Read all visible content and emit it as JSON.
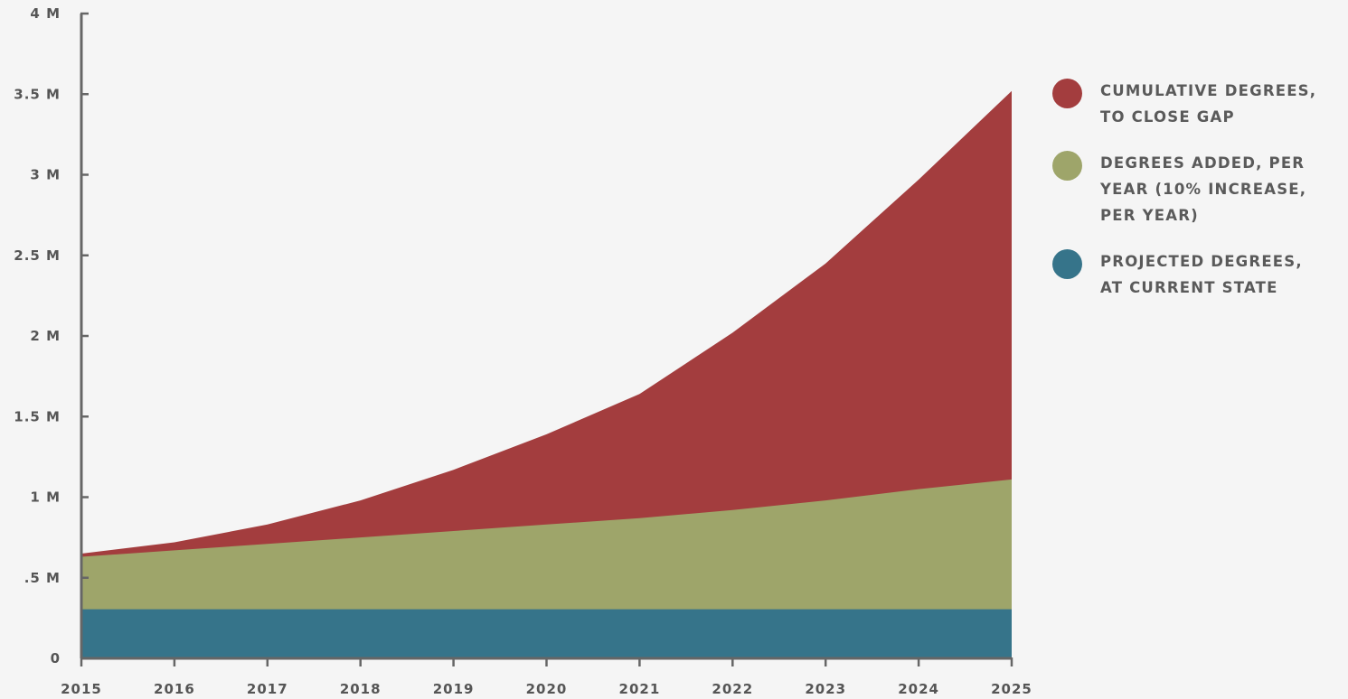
{
  "chart_data": {
    "type": "area",
    "title": "",
    "xlabel": "",
    "ylabel": "",
    "x": [
      2015,
      2016,
      2017,
      2018,
      2019,
      2020,
      2021,
      2022,
      2023,
      2024,
      2025
    ],
    "ylim": [
      0,
      4000000
    ],
    "y_ticks": [
      {
        "value": 0,
        "label": "0"
      },
      {
        "value": 500000,
        "label": ".5 M"
      },
      {
        "value": 1000000,
        "label": "1 M"
      },
      {
        "value": 1500000,
        "label": "1.5 M"
      },
      {
        "value": 2000000,
        "label": "2 M"
      },
      {
        "value": 2500000,
        "label": "2.5 M"
      },
      {
        "value": 3000000,
        "label": "3 M"
      },
      {
        "value": 3500000,
        "label": "3.5 M"
      },
      {
        "value": 4000000,
        "label": "4 M"
      }
    ],
    "x_ticks": [
      "2015",
      "2016",
      "2017",
      "2018",
      "2019",
      "2020",
      "2021",
      "2022",
      "2023",
      "2024",
      "2025"
    ],
    "series": [
      {
        "name": "CUMULATIVE DEGREES,\nTO CLOSE GAP",
        "color": "#a33d3e",
        "values": [
          650000,
          720000,
          830000,
          980000,
          1170000,
          1390000,
          1640000,
          2020000,
          2450000,
          2970000,
          3520000
        ]
      },
      {
        "name": "DEGREES ADDED, PER\nYEAR (10% INCREASE,\nPER YEAR)",
        "color": "#9ea56a",
        "values": [
          630000,
          670000,
          710000,
          750000,
          790000,
          830000,
          870000,
          920000,
          980000,
          1050000,
          1110000
        ]
      },
      {
        "name": "PROJECTED DEGREES,\nAT CURRENT STATE",
        "color": "#36748a",
        "values": [
          305000,
          305000,
          305000,
          305000,
          305000,
          305000,
          305000,
          305000,
          305000,
          305000,
          305000
        ]
      }
    ],
    "axis_color": "#666666",
    "legend_position": "right",
    "grid": false
  }
}
